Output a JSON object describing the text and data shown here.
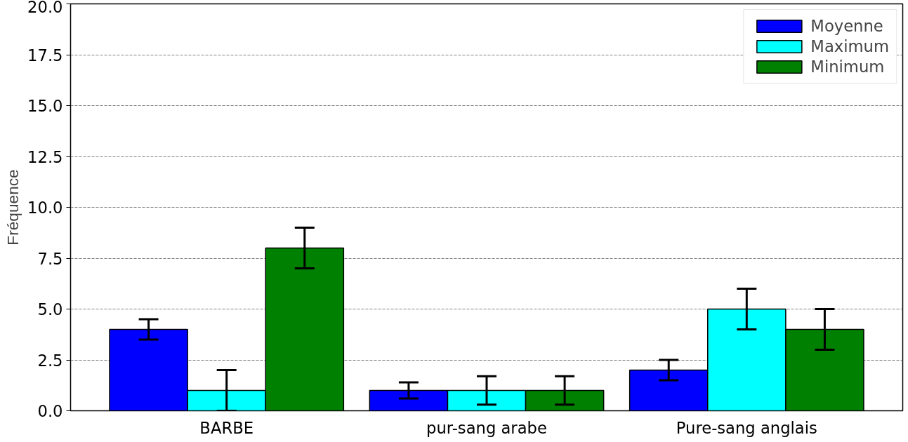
{
  "chart_data": {
    "type": "bar",
    "ylabel": "Fréquence",
    "categories": [
      "BARBE",
      "pur-sang arabe",
      "Pure-sang anglais"
    ],
    "series": [
      {
        "name": "Moyenne",
        "color": "#0000ff",
        "values": [
          4,
          1,
          2
        ],
        "errors": [
          0.5,
          0.4,
          0.5
        ]
      },
      {
        "name": "Maximum",
        "color": "#00ffff",
        "values": [
          1,
          1,
          5
        ],
        "errors": [
          1,
          0.7,
          1
        ]
      },
      {
        "name": "Minimum",
        "color": "#008000",
        "values": [
          8,
          1,
          4
        ],
        "errors": [
          1,
          0.7,
          1
        ]
      }
    ],
    "ylim": [
      0,
      20
    ],
    "yticks": [
      {
        "value": 0,
        "label": "0.0"
      },
      {
        "value": 2.5,
        "label": "2.5"
      },
      {
        "value": 5,
        "label": "5.0"
      },
      {
        "value": 7.5,
        "label": "7.5"
      },
      {
        "value": 10,
        "label": "10.0"
      },
      {
        "value": 12.5,
        "label": "12.5"
      },
      {
        "value": 15,
        "label": "15.0"
      },
      {
        "value": 17.5,
        "label": "17.5"
      },
      {
        "value": 20,
        "label": "20.0"
      }
    ],
    "grid": "y",
    "legend": "top right"
  }
}
